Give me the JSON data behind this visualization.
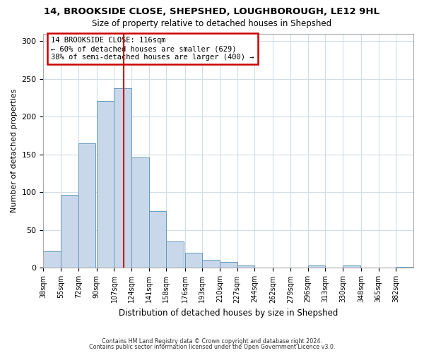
{
  "title": "14, BROOKSIDE CLOSE, SHEPSHED, LOUGHBOROUGH, LE12 9HL",
  "subtitle": "Size of property relative to detached houses in Shepshed",
  "xlabel": "Distribution of detached houses by size in Shepshed",
  "ylabel": "Number of detached properties",
  "bin_labels": [
    "38sqm",
    "55sqm",
    "72sqm",
    "90sqm",
    "107sqm",
    "124sqm",
    "141sqm",
    "158sqm",
    "176sqm",
    "193sqm",
    "210sqm",
    "227sqm",
    "244sqm",
    "262sqm",
    "279sqm",
    "296sqm",
    "313sqm",
    "330sqm",
    "348sqm",
    "365sqm",
    "382sqm"
  ],
  "bin_edges": [
    38,
    55,
    72,
    90,
    107,
    124,
    141,
    158,
    176,
    193,
    210,
    227,
    244,
    262,
    279,
    296,
    313,
    330,
    348,
    365,
    382
  ],
  "bar_heights": [
    22,
    97,
    165,
    221,
    238,
    146,
    75,
    35,
    20,
    11,
    8,
    3,
    0,
    0,
    0,
    3,
    0,
    3,
    0,
    0,
    1
  ],
  "bar_color": "#c8d8ea",
  "bar_edge_color": "#6699bb",
  "vline_x": 116,
  "vline_color": "#cc0000",
  "annotation_title": "14 BROOKSIDE CLOSE: 116sqm",
  "annotation_line1": "← 60% of detached houses are smaller (629)",
  "annotation_line2": "38% of semi-detached houses are larger (400) →",
  "annotation_box_color": "#cc0000",
  "ylim": [
    0,
    310
  ],
  "yticks": [
    0,
    50,
    100,
    150,
    200,
    250,
    300
  ],
  "footer1": "Contains HM Land Registry data © Crown copyright and database right 2024.",
  "footer2": "Contains public sector information licensed under the Open Government Licence v3.0.",
  "bg_color": "#ffffff",
  "plot_bg_color": "#ffffff"
}
